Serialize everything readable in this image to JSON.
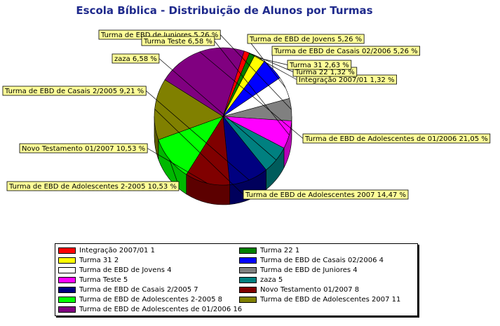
{
  "chart_data": {
    "type": "pie",
    "title": "Escola Bíblica - Distribuição de Alunos por Turmas",
    "legend_position": "bottom",
    "slices": [
      {
        "label": "Integração 2007/01",
        "value": 1,
        "percent": "1,32 %",
        "color": "#ff0000"
      },
      {
        "label": "Turma 22",
        "value": 1,
        "percent": "1,32 %",
        "color": "#008000"
      },
      {
        "label": "Turma 31",
        "value": 2,
        "percent": "2,63 %",
        "color": "#ffff00"
      },
      {
        "label": "Turma de EBD de Casais 02/2006",
        "value": 4,
        "percent": "5,26 %",
        "color": "#0000ff"
      },
      {
        "label": "Turma de EBD de Jovens",
        "value": 4,
        "percent": "5,26 %",
        "color": "#ffffff"
      },
      {
        "label": "Turma de EBD de Juniores",
        "value": 4,
        "percent": "5,26 %",
        "color": "#808080"
      },
      {
        "label": "Turma Teste",
        "value": 5,
        "percent": "6,58 %",
        "color": "#ff00ff"
      },
      {
        "label": "zaza",
        "value": 5,
        "percent": "6,58 %",
        "color": "#008080"
      },
      {
        "label": "Turma de EBD de Casais 2/2005",
        "value": 7,
        "percent": "9,21 %",
        "color": "#000080"
      },
      {
        "label": "Novo Testamento 01/2007",
        "value": 8,
        "percent": "10,53 %",
        "color": "#800000"
      },
      {
        "label": "Turma de EBD de Adolescentes 2-2005",
        "value": 8,
        "percent": "10,53 %",
        "color": "#00ff00"
      },
      {
        "label": "Turma de EBD de Adolescentes 2007",
        "value": 11,
        "percent": "14,47 %",
        "color": "#808000"
      },
      {
        "label": "Turma de EBD de Adolescentes de 01/2006",
        "value": 16,
        "percent": "21,05 %",
        "color": "#800080"
      }
    ]
  }
}
